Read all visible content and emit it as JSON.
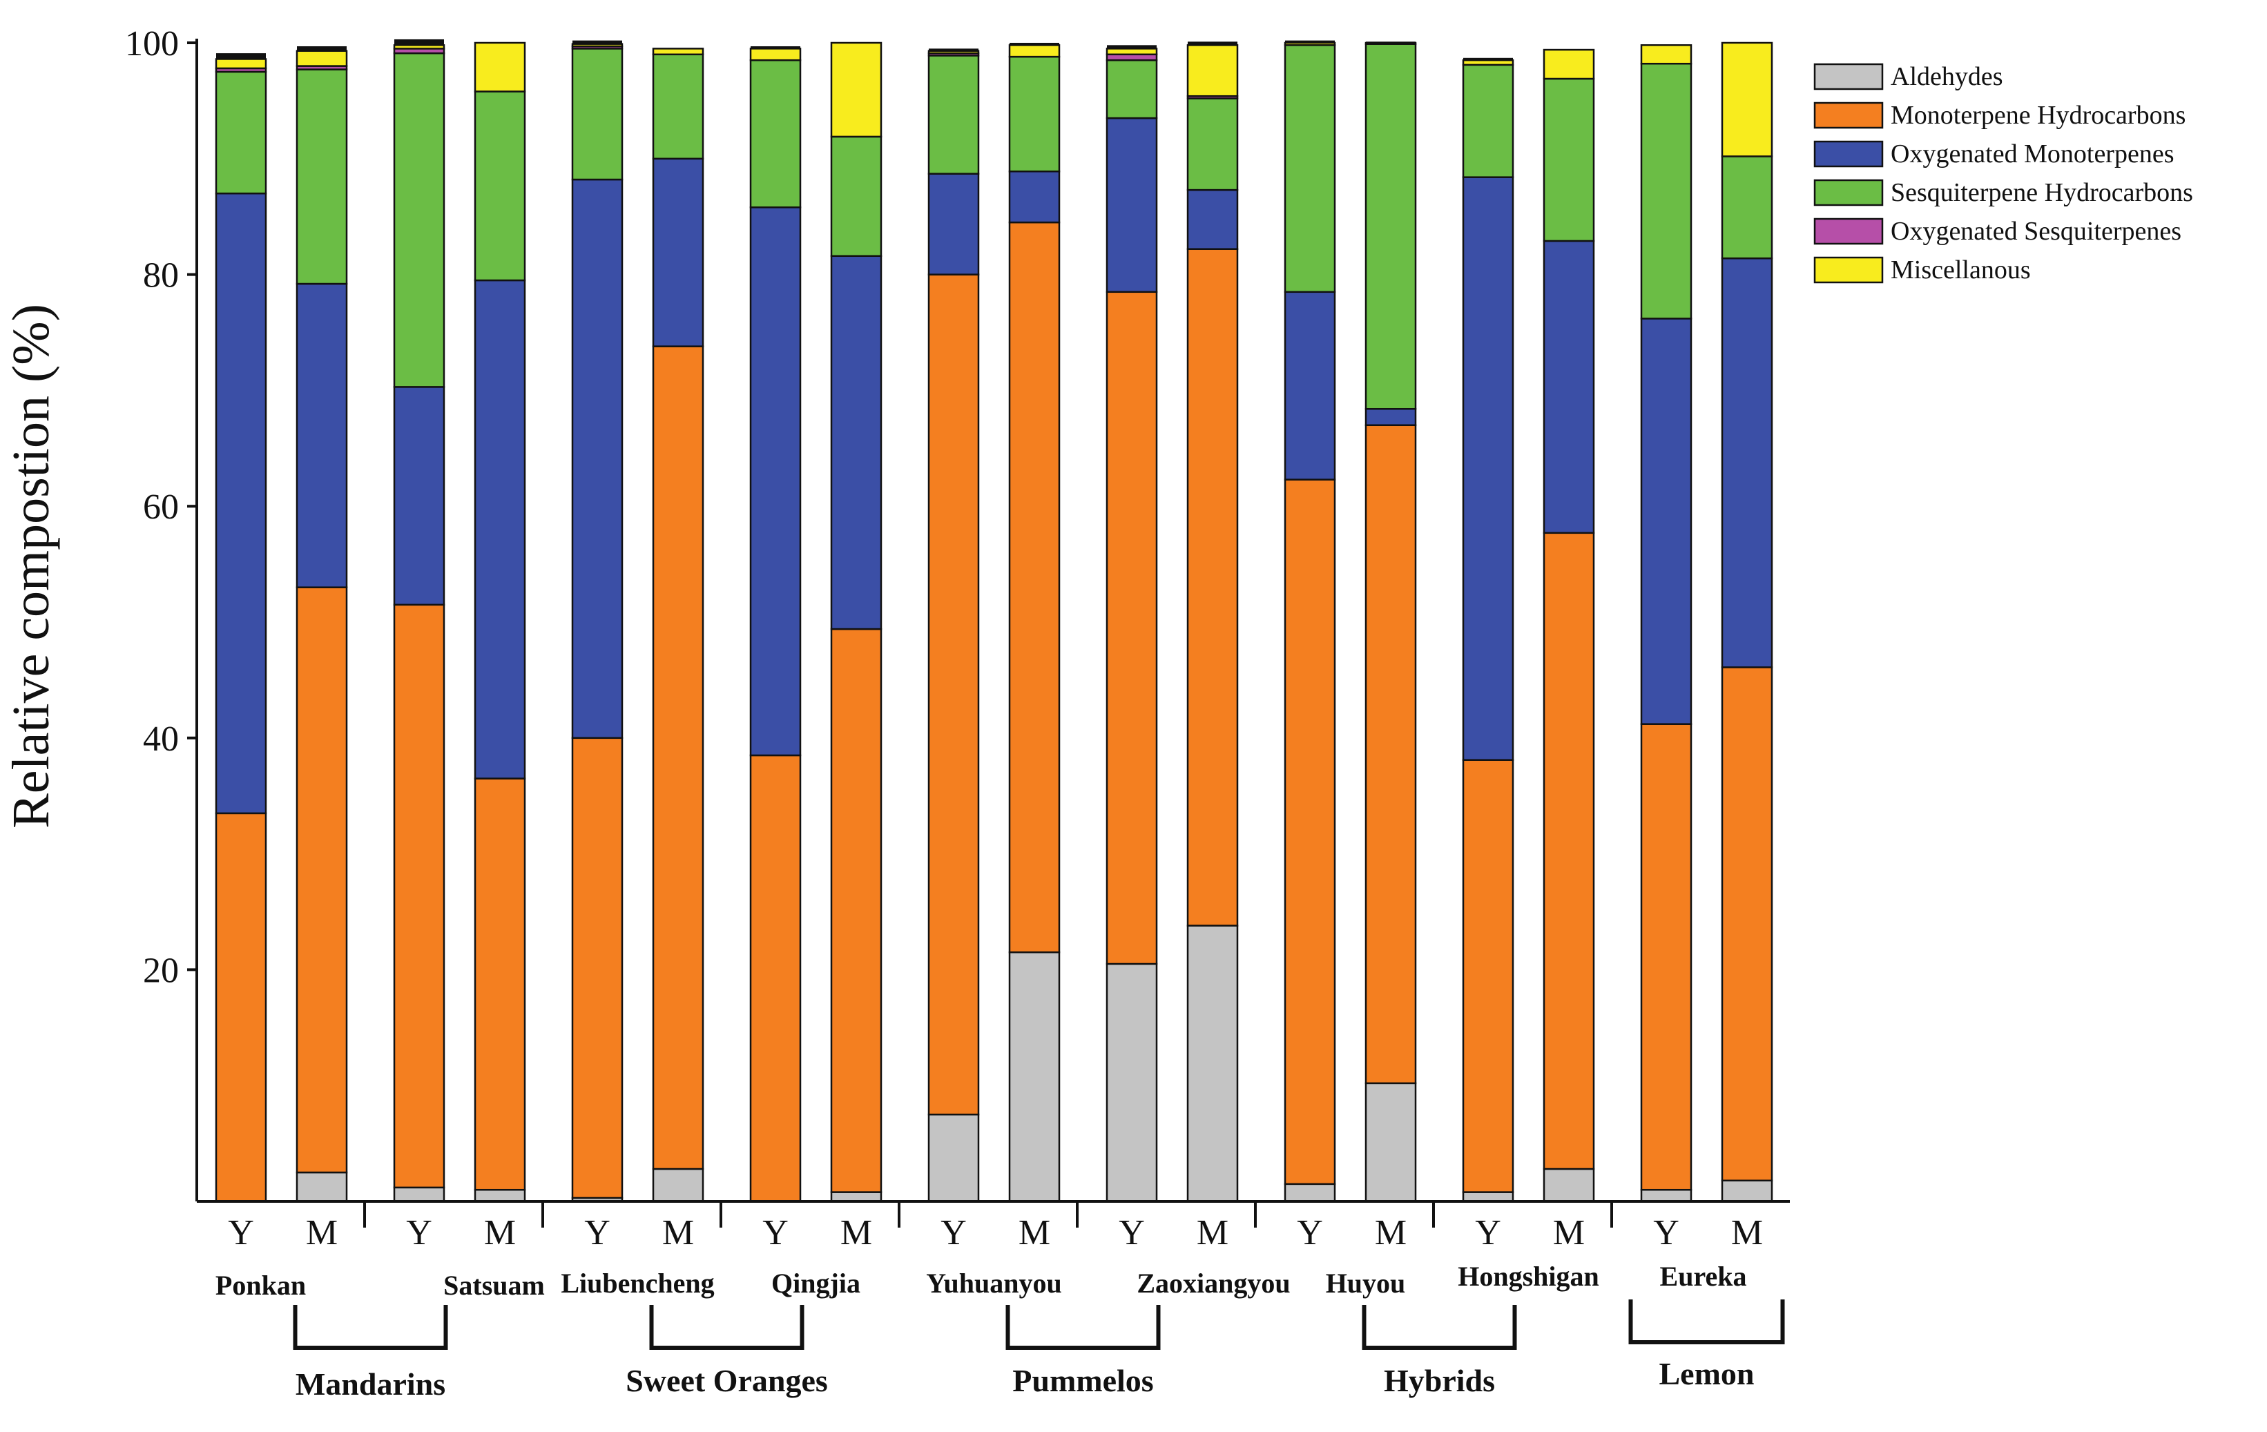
{
  "chart_data": {
    "type": "bar",
    "stacked": true,
    "title": "",
    "xlabel": "",
    "ylabel": "Relative compostion (%)",
    "ylim": [
      0,
      100
    ],
    "yticks": [
      20,
      40,
      60,
      80,
      100
    ],
    "categories": [
      "Y",
      "M",
      "Y",
      "M",
      "Y",
      "M",
      "Y",
      "M",
      "Y",
      "M",
      "Y",
      "M",
      "Y",
      "M",
      "Y",
      "M",
      "Y",
      "M"
    ],
    "varieties": [
      "Ponkan",
      "Satsuam",
      "Liubencheng",
      "Qingjia",
      "Yuhuanyou",
      "Zaoxiangyou",
      "Huyou",
      "Hongshigan",
      "Eureka"
    ],
    "groups": [
      {
        "name": "Mandarins",
        "varieties": [
          "Ponkan",
          "Satsuam"
        ]
      },
      {
        "name": "Sweet Oranges",
        "varieties": [
          "Liubencheng",
          "Qingjia"
        ]
      },
      {
        "name": "Pummelos",
        "varieties": [
          "Yuhuanyou",
          "Zaoxiangyou"
        ]
      },
      {
        "name": "Hybrids",
        "varieties": [
          "Huyou",
          "Hongshigan"
        ]
      },
      {
        "name": "Lemon",
        "varieties": [
          "Eureka"
        ]
      }
    ],
    "legend_position": "top-right",
    "series": [
      {
        "name": "Aldehydes",
        "color": "#c4c4c4",
        "values": [
          0,
          2.5,
          1.2,
          1.0,
          0.3,
          2.8,
          0,
          0.8,
          7.5,
          21.5,
          20.5,
          23.8,
          1.5,
          10.2,
          0.8,
          2.8,
          1.0,
          1.8
        ]
      },
      {
        "name": "Monoterpene Hydrocarbons",
        "color": "#f47f20",
        "values": [
          33.5,
          50.5,
          50.3,
          35.5,
          39.7,
          71.0,
          38.5,
          48.6,
          72.5,
          63.0,
          58.0,
          58.4,
          60.8,
          56.8,
          37.3,
          54.9,
          40.2,
          44.3
        ]
      },
      {
        "name": "Oxygenated Monoterpenes",
        "color": "#3b4fa6",
        "values": [
          53.5,
          26.2,
          18.8,
          43.0,
          48.2,
          16.2,
          47.3,
          32.2,
          8.7,
          4.4,
          15.0,
          5.1,
          16.2,
          1.4,
          50.3,
          25.2,
          35.0,
          35.3
        ]
      },
      {
        "name": "Sesquiterpene Hydrocarbons",
        "color": "#6bbd45",
        "values": [
          10.5,
          18.5,
          28.8,
          16.3,
          11.3,
          9.0,
          12.7,
          10.3,
          10.2,
          9.9,
          5.0,
          7.9,
          21.3,
          31.5,
          9.7,
          14.0,
          22.0,
          8.8
        ]
      },
      {
        "name": "Oxygenated Sesquiterpenes",
        "color": "#b64fa8",
        "values": [
          0.3,
          0.3,
          0.4,
          0.0,
          0.2,
          0.0,
          0.0,
          0.0,
          0.2,
          0.0,
          0.5,
          0.2,
          0.0,
          0.0,
          0.0,
          0.0,
          0.0,
          0.0
        ]
      },
      {
        "name": "Miscellanous",
        "color": "#f8ec1e",
        "values": [
          0.8,
          1.3,
          0.3,
          4.2,
          0.2,
          0.5,
          1.0,
          8.1,
          0.2,
          1.0,
          0.5,
          4.4,
          0.2,
          0.1,
          0.4,
          2.5,
          1.6,
          9.8
        ]
      }
    ],
    "black_caps": [
      0.5,
      0.4,
      0.5,
      0.0,
      0.3,
      0.0,
      0.2,
      0.0,
      0.2,
      0.2,
      0.3,
      0.3,
      0.2,
      0.1,
      0.2,
      0.0,
      0.0,
      0.0
    ]
  }
}
